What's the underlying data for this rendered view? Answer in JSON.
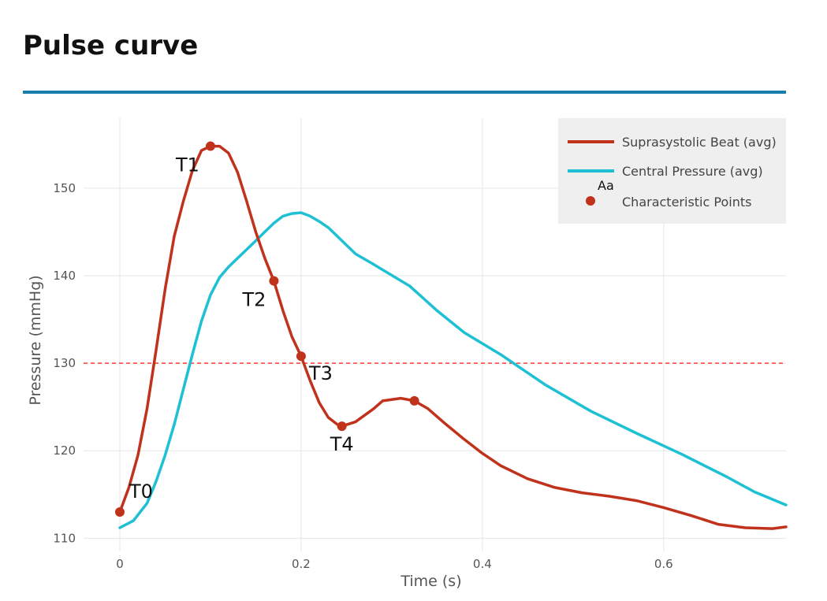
{
  "page": {
    "title": "Pulse curve"
  },
  "chart_data": {
    "type": "line",
    "xlabel": "Time (s)",
    "ylabel": "Pressure (mmHg)",
    "xlim": [
      -0.04,
      0.735
    ],
    "ylim": [
      108.5,
      158
    ],
    "x_ticks": [
      0,
      0.2,
      0.4,
      0.6
    ],
    "x_tick_labels": [
      "0",
      "0.2",
      "0.4",
      "0.6"
    ],
    "y_ticks": [
      110,
      120,
      130,
      140,
      150
    ],
    "y_tick_labels": [
      "110",
      "120",
      "130",
      "140",
      "150"
    ],
    "grid": true,
    "legend_position": "top-right",
    "reference_line": {
      "y": 130,
      "color": "#ff3b30",
      "style": "dashed"
    },
    "colors": {
      "suprasystolic": "#c0321c",
      "central": "#1ec0d4",
      "points": "#c0321c"
    },
    "series": [
      {
        "name": "Suprasystolic Beat (avg)",
        "x": [
          0,
          0.01,
          0.02,
          0.03,
          0.04,
          0.05,
          0.06,
          0.07,
          0.08,
          0.09,
          0.1,
          0.11,
          0.12,
          0.13,
          0.14,
          0.15,
          0.16,
          0.17,
          0.18,
          0.19,
          0.2,
          0.21,
          0.22,
          0.23,
          0.24,
          0.245,
          0.26,
          0.28,
          0.29,
          0.31,
          0.325,
          0.34,
          0.36,
          0.38,
          0.4,
          0.42,
          0.45,
          0.48,
          0.51,
          0.54,
          0.57,
          0.6,
          0.63,
          0.66,
          0.69,
          0.72,
          0.735
        ],
        "y": [
          113.0,
          115.8,
          119.5,
          124.8,
          131.5,
          138.5,
          144.5,
          148.5,
          152.0,
          154.3,
          154.8,
          154.8,
          154.0,
          151.8,
          148.5,
          145.0,
          142.0,
          139.4,
          136.0,
          133.0,
          130.8,
          128.0,
          125.5,
          123.8,
          123.0,
          122.8,
          123.3,
          124.8,
          125.7,
          126.0,
          125.7,
          124.8,
          123.0,
          121.3,
          119.7,
          118.3,
          116.8,
          115.8,
          115.2,
          114.8,
          114.3,
          113.5,
          112.6,
          111.6,
          111.2,
          111.1,
          111.3
        ]
      },
      {
        "name": "Central Pressure (avg)",
        "x": [
          0,
          0.015,
          0.03,
          0.04,
          0.05,
          0.06,
          0.07,
          0.08,
          0.09,
          0.1,
          0.11,
          0.12,
          0.13,
          0.14,
          0.15,
          0.16,
          0.17,
          0.18,
          0.19,
          0.2,
          0.21,
          0.22,
          0.23,
          0.25,
          0.26,
          0.28,
          0.32,
          0.35,
          0.38,
          0.42,
          0.47,
          0.52,
          0.57,
          0.62,
          0.67,
          0.7,
          0.735
        ],
        "y": [
          111.2,
          112.0,
          114.0,
          116.5,
          119.5,
          123.0,
          127.0,
          131.0,
          134.8,
          137.8,
          139.8,
          141.0,
          142.0,
          143.0,
          144.0,
          145.0,
          146.0,
          146.8,
          147.1,
          147.2,
          146.8,
          146.2,
          145.5,
          143.5,
          142.5,
          141.3,
          138.8,
          136.0,
          133.5,
          131.0,
          127.5,
          124.5,
          122.0,
          119.6,
          117.0,
          115.3,
          113.8
        ]
      }
    ],
    "points": {
      "name": "Characteristic Points",
      "items": [
        {
          "label": "T0",
          "x": 0.0,
          "y": 113.0
        },
        {
          "label": "T1",
          "x": 0.1,
          "y": 154.8
        },
        {
          "label": "T2",
          "x": 0.17,
          "y": 139.4
        },
        {
          "label": "T3",
          "x": 0.2,
          "y": 130.8
        },
        {
          "label": "T4",
          "x": 0.245,
          "y": 122.8
        },
        {
          "label": "",
          "x": 0.325,
          "y": 125.7
        }
      ]
    },
    "legend_hint": "Aa"
  }
}
